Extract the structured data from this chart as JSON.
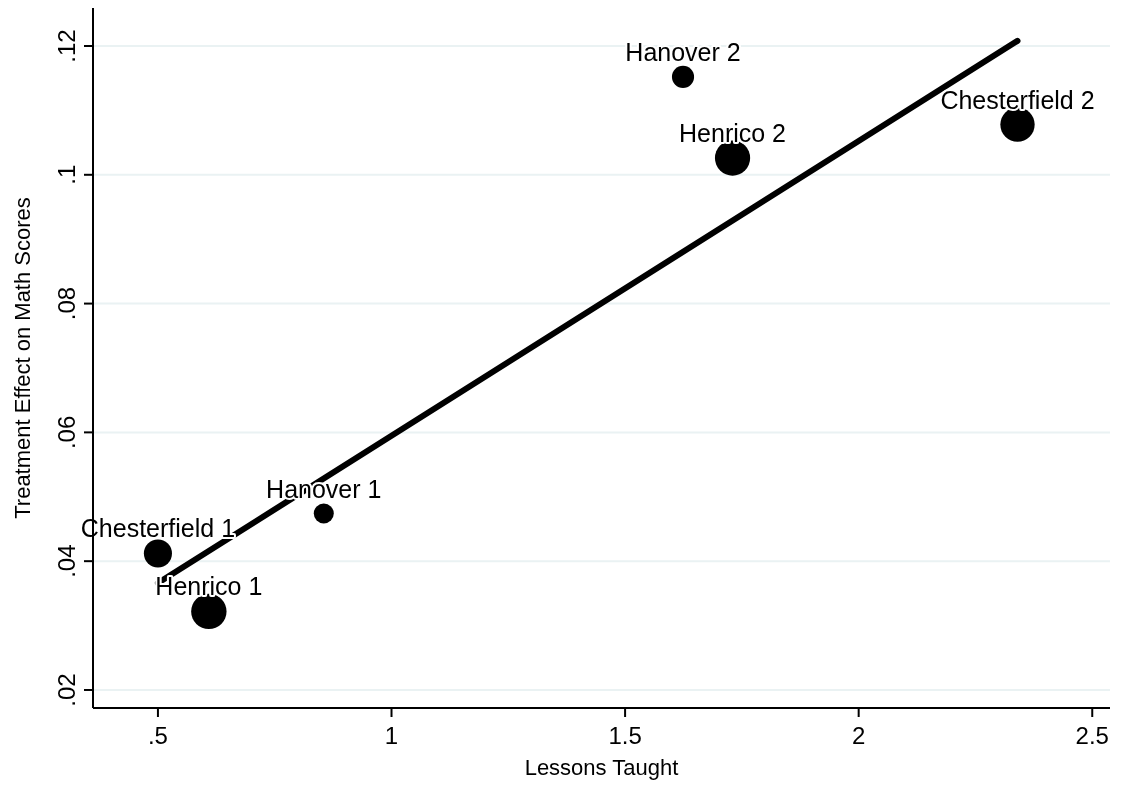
{
  "chart_data": {
    "type": "bubble",
    "xlabel": "Lessons Taught",
    "ylabel": "Treatment Effect on Math Scores",
    "series": [
      {
        "color": "#000000",
        "x": [
          0.5,
          0.609,
          0.855,
          1.624,
          1.73,
          2.34
        ],
        "values": [
          0.0412,
          0.0322,
          0.0474,
          0.1152,
          0.1026,
          0.1078
        ],
        "sizes": [
          0.63,
          1,
          0.32,
          0.39,
          0.99,
          0.94
        ]
      },
      {
        "type": "line",
        "color": "#000000",
        "x": [
          0.5,
          2.34
        ],
        "values": [
          0.0366,
          0.1208
        ]
      }
    ],
    "annotations": [
      {
        "text": "Chesterfield 1",
        "x": 0.5,
        "y": 0.0412
      },
      {
        "text": "Henrico 1",
        "x": 0.609,
        "y": 0.0322
      },
      {
        "text": "Hanover 1",
        "x": 0.855,
        "y": 0.0474
      },
      {
        "text": "Hanover 2",
        "x": 1.624,
        "y": 0.1152
      },
      {
        "text": "Henrico 2",
        "x": 1.73,
        "y": 0.1026
      },
      {
        "text": "Chesterfield 2",
        "x": 2.34,
        "y": 0.1078
      }
    ],
    "xlim": [
      0.361,
      2.538
    ],
    "ylim": [
      0.0172,
      0.1259
    ],
    "xticks": [
      {
        "value": 0.5,
        "label": ".5"
      },
      1,
      1.5,
      2,
      2.5
    ],
    "yticks": [
      {
        "value": 0.02,
        "label": ".02"
      },
      {
        "value": 0.04,
        "label": ".04"
      },
      {
        "value": 0.06,
        "label": ".06"
      },
      {
        "value": 0.08,
        "label": ".08"
      },
      {
        "value": 0.1,
        "label": ".1"
      },
      {
        "value": 0.12,
        "label": ".12"
      }
    ],
    "grid": "y"
  }
}
